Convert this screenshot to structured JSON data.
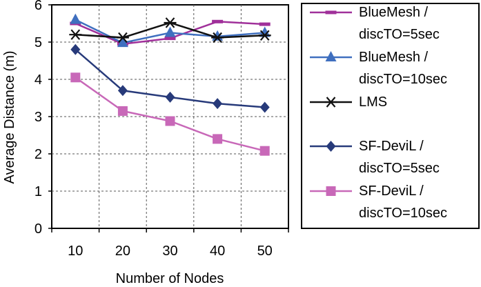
{
  "chart_data": {
    "type": "line",
    "title": "",
    "xlabel": "Number of Nodes",
    "ylabel": "Average Distance (m)",
    "x": [
      10,
      20,
      30,
      40,
      50
    ],
    "xticks": [
      "10",
      "20",
      "30",
      "40",
      "50"
    ],
    "ylim": [
      0,
      6
    ],
    "yticks": [
      "0",
      "1",
      "2",
      "3",
      "4",
      "5",
      "6"
    ],
    "grid": true,
    "legend_position": "right",
    "series": [
      {
        "name": "BlueMesh / discTO=5sec",
        "legend_lines": [
          "BlueMesh /",
          "discTO=5sec"
        ],
        "values": [
          5.5,
          4.95,
          5.1,
          5.55,
          5.48
        ],
        "color": "#a0309a",
        "marker": "dash"
      },
      {
        "name": "BlueMesh / discTO=10sec",
        "legend_lines": [
          "BlueMesh /",
          "discTO=10sec"
        ],
        "values": [
          5.6,
          4.98,
          5.25,
          5.15,
          5.25
        ],
        "color": "#3f6fbf",
        "marker": "triangle"
      },
      {
        "name": "LMS",
        "legend_lines": [
          "LMS"
        ],
        "values": [
          5.2,
          5.12,
          5.52,
          5.12,
          5.18
        ],
        "color": "#111111",
        "marker": "asterisk"
      },
      {
        "name": "SF-DeviL / discTO=5sec",
        "legend_lines": [
          "SF-DeviL /",
          "discTO=5sec"
        ],
        "values": [
          4.8,
          3.7,
          3.52,
          3.35,
          3.25
        ],
        "color": "#273a7a",
        "marker": "diamond"
      },
      {
        "name": "SF-DeviL / discTO=10sec",
        "legend_lines": [
          "SF-DeviL /",
          "discTO=10sec"
        ],
        "values": [
          4.05,
          3.15,
          2.88,
          2.4,
          2.08
        ],
        "color": "#c868b8",
        "marker": "square"
      }
    ]
  }
}
